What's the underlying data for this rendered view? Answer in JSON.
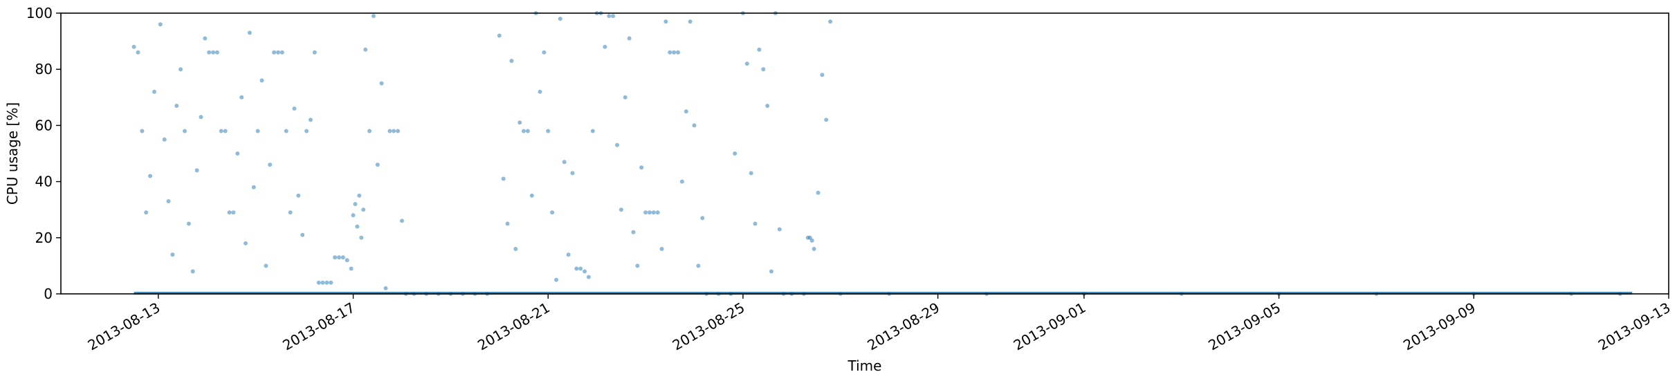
{
  "chart_data": {
    "type": "scatter",
    "title": "",
    "xlabel": "Time",
    "ylabel": "CPU usage [%]",
    "ylim": [
      0,
      100
    ],
    "xlim": [
      "2013-08-11",
      "2013-09-13"
    ],
    "grid": false,
    "legend": "none",
    "point_color": "#1f77b4",
    "x_ticks": [
      {
        "date": "2013-08-13",
        "label": "2013-08-13"
      },
      {
        "date": "2013-08-17",
        "label": "2013-08-17"
      },
      {
        "date": "2013-08-21",
        "label": "2013-08-21"
      },
      {
        "date": "2013-08-25",
        "label": "2013-08-25"
      },
      {
        "date": "2013-08-29",
        "label": "2013-08-29"
      },
      {
        "date": "2013-09-01",
        "label": "2013-09-01"
      },
      {
        "date": "2013-09-05",
        "label": "2013-09-05"
      },
      {
        "date": "2013-09-09",
        "label": "2013-09-09"
      },
      {
        "date": "2013-09-13",
        "label": "2013-09-13"
      }
    ],
    "y_ticks": [
      0,
      20,
      40,
      60,
      80,
      100
    ],
    "series": [
      {
        "points": [
          [
            "2013-08-12 12:00",
            88
          ],
          [
            "2013-08-12 14:00",
            86
          ],
          [
            "2013-08-12 16:00",
            58
          ],
          [
            "2013-08-12 18:00",
            29
          ],
          [
            "2013-08-12 20:00",
            42
          ],
          [
            "2013-08-12 22:00",
            72
          ],
          [
            "2013-08-13 01:00",
            96
          ],
          [
            "2013-08-13 03:00",
            55
          ],
          [
            "2013-08-13 05:00",
            33
          ],
          [
            "2013-08-13 07:00",
            14
          ],
          [
            "2013-08-13 09:00",
            67
          ],
          [
            "2013-08-13 11:00",
            80
          ],
          [
            "2013-08-13 13:00",
            58
          ],
          [
            "2013-08-13 15:00",
            25
          ],
          [
            "2013-08-13 17:00",
            8
          ],
          [
            "2013-08-13 19:00",
            44
          ],
          [
            "2013-08-13 21:00",
            63
          ],
          [
            "2013-08-13 23:00",
            91
          ],
          [
            "2013-08-14 01:00",
            86
          ],
          [
            "2013-08-14 03:00",
            86
          ],
          [
            "2013-08-14 05:00",
            86
          ],
          [
            "2013-08-14 07:00",
            58
          ],
          [
            "2013-08-14 09:00",
            58
          ],
          [
            "2013-08-14 11:00",
            29
          ],
          [
            "2013-08-14 13:00",
            29
          ],
          [
            "2013-08-14 15:00",
            50
          ],
          [
            "2013-08-14 17:00",
            70
          ],
          [
            "2013-08-14 19:00",
            18
          ],
          [
            "2013-08-14 21:00",
            93
          ],
          [
            "2013-08-14 23:00",
            38
          ],
          [
            "2013-08-15 01:00",
            58
          ],
          [
            "2013-08-15 03:00",
            76
          ],
          [
            "2013-08-15 05:00",
            10
          ],
          [
            "2013-08-15 07:00",
            46
          ],
          [
            "2013-08-15 09:00",
            86
          ],
          [
            "2013-08-15 11:00",
            86
          ],
          [
            "2013-08-15 13:00",
            86
          ],
          [
            "2013-08-15 15:00",
            58
          ],
          [
            "2013-08-15 17:00",
            29
          ],
          [
            "2013-08-15 19:00",
            66
          ],
          [
            "2013-08-15 21:00",
            35
          ],
          [
            "2013-08-15 23:00",
            21
          ],
          [
            "2013-08-16 01:00",
            58
          ],
          [
            "2013-08-16 03:00",
            62
          ],
          [
            "2013-08-16 05:00",
            86
          ],
          [
            "2013-08-16 07:00",
            4
          ],
          [
            "2013-08-16 09:00",
            4
          ],
          [
            "2013-08-16 11:00",
            4
          ],
          [
            "2013-08-16 13:00",
            4
          ],
          [
            "2013-08-16 15:00",
            13
          ],
          [
            "2013-08-16 17:00",
            13
          ],
          [
            "2013-08-16 19:00",
            13
          ],
          [
            "2013-08-16 21:00",
            12
          ],
          [
            "2013-08-16 23:00",
            9
          ],
          [
            "2013-08-17 00:00",
            28
          ],
          [
            "2013-08-17 01:00",
            32
          ],
          [
            "2013-08-17 02:00",
            24
          ],
          [
            "2013-08-17 03:00",
            35
          ],
          [
            "2013-08-17 04:00",
            20
          ],
          [
            "2013-08-17 05:00",
            30
          ],
          [
            "2013-08-17 06:00",
            87
          ],
          [
            "2013-08-17 08:00",
            58
          ],
          [
            "2013-08-17 10:00",
            99
          ],
          [
            "2013-08-17 12:00",
            46
          ],
          [
            "2013-08-17 14:00",
            75
          ],
          [
            "2013-08-17 16:00",
            2
          ],
          [
            "2013-08-17 18:00",
            58
          ],
          [
            "2013-08-17 20:00",
            58
          ],
          [
            "2013-08-17 22:00",
            58
          ],
          [
            "2013-08-18 00:00",
            26
          ],
          [
            "2013-08-18 02:00",
            0
          ],
          [
            "2013-08-18 06:00",
            0
          ],
          [
            "2013-08-18 12:00",
            0
          ],
          [
            "2013-08-18 18:00",
            0
          ],
          [
            "2013-08-19 00:00",
            0
          ],
          [
            "2013-08-19 06:00",
            0
          ],
          [
            "2013-08-19 12:00",
            0
          ],
          [
            "2013-08-19 18:00",
            0
          ],
          [
            "2013-08-20 00:00",
            92
          ],
          [
            "2013-08-20 02:00",
            41
          ],
          [
            "2013-08-20 04:00",
            25
          ],
          [
            "2013-08-20 06:00",
            83
          ],
          [
            "2013-08-20 08:00",
            16
          ],
          [
            "2013-08-20 10:00",
            61
          ],
          [
            "2013-08-20 12:00",
            58
          ],
          [
            "2013-08-20 14:00",
            58
          ],
          [
            "2013-08-20 16:00",
            35
          ],
          [
            "2013-08-20 18:00",
            100
          ],
          [
            "2013-08-20 20:00",
            72
          ],
          [
            "2013-08-20 22:00",
            86
          ],
          [
            "2013-08-21 00:00",
            58
          ],
          [
            "2013-08-21 02:00",
            29
          ],
          [
            "2013-08-21 04:00",
            5
          ],
          [
            "2013-08-21 06:00",
            98
          ],
          [
            "2013-08-21 08:00",
            47
          ],
          [
            "2013-08-21 10:00",
            14
          ],
          [
            "2013-08-21 12:00",
            43
          ],
          [
            "2013-08-21 14:00",
            9
          ],
          [
            "2013-08-21 16:00",
            9
          ],
          [
            "2013-08-21 18:00",
            8
          ],
          [
            "2013-08-21 20:00",
            6
          ],
          [
            "2013-08-21 22:00",
            58
          ],
          [
            "2013-08-22 00:00",
            100
          ],
          [
            "2013-08-22 02:00",
            100
          ],
          [
            "2013-08-22 04:00",
            88
          ],
          [
            "2013-08-22 06:00",
            99
          ],
          [
            "2013-08-22 08:00",
            99
          ],
          [
            "2013-08-22 10:00",
            53
          ],
          [
            "2013-08-22 12:00",
            30
          ],
          [
            "2013-08-22 14:00",
            70
          ],
          [
            "2013-08-22 16:00",
            91
          ],
          [
            "2013-08-22 18:00",
            22
          ],
          [
            "2013-08-22 20:00",
            10
          ],
          [
            "2013-08-22 22:00",
            45
          ],
          [
            "2013-08-23 00:00",
            29
          ],
          [
            "2013-08-23 02:00",
            29
          ],
          [
            "2013-08-23 04:00",
            29
          ],
          [
            "2013-08-23 06:00",
            29
          ],
          [
            "2013-08-23 08:00",
            16
          ],
          [
            "2013-08-23 10:00",
            97
          ],
          [
            "2013-08-23 12:00",
            86
          ],
          [
            "2013-08-23 14:00",
            86
          ],
          [
            "2013-08-23 16:00",
            86
          ],
          [
            "2013-08-23 18:00",
            40
          ],
          [
            "2013-08-23 20:00",
            65
          ],
          [
            "2013-08-23 22:00",
            97
          ],
          [
            "2013-08-24 00:00",
            60
          ],
          [
            "2013-08-24 02:00",
            10
          ],
          [
            "2013-08-24 04:00",
            27
          ],
          [
            "2013-08-24 06:00",
            0
          ],
          [
            "2013-08-24 12:00",
            0
          ],
          [
            "2013-08-24 18:00",
            0
          ],
          [
            "2013-08-24 20:00",
            50
          ],
          [
            "2013-08-25 00:00",
            100
          ],
          [
            "2013-08-25 02:00",
            82
          ],
          [
            "2013-08-25 04:00",
            43
          ],
          [
            "2013-08-25 06:00",
            25
          ],
          [
            "2013-08-25 08:00",
            87
          ],
          [
            "2013-08-25 10:00",
            80
          ],
          [
            "2013-08-25 12:00",
            67
          ],
          [
            "2013-08-25 14:00",
            8
          ],
          [
            "2013-08-25 16:00",
            100
          ],
          [
            "2013-08-25 18:00",
            23
          ],
          [
            "2013-08-25 20:00",
            0
          ],
          [
            "2013-08-26 00:00",
            0
          ],
          [
            "2013-08-26 06:00",
            0
          ],
          [
            "2013-08-26 08:00",
            20
          ],
          [
            "2013-08-26 09:00",
            20
          ],
          [
            "2013-08-26 10:00",
            19
          ],
          [
            "2013-08-26 11:00",
            16
          ],
          [
            "2013-08-26 13:00",
            36
          ],
          [
            "2013-08-26 15:00",
            78
          ],
          [
            "2013-08-26 17:00",
            62
          ],
          [
            "2013-08-26 19:00",
            97
          ],
          [
            "2013-08-27 00:00",
            0
          ],
          [
            "2013-08-28 00:00",
            0
          ],
          [
            "2013-08-30 00:00",
            0
          ],
          [
            "2013-09-01 00:00",
            0
          ],
          [
            "2013-09-03 00:00",
            0
          ],
          [
            "2013-09-05 00:00",
            0
          ],
          [
            "2013-09-07 00:00",
            0
          ],
          [
            "2013-09-09 00:00",
            0
          ],
          [
            "2013-09-11 00:00",
            0
          ],
          [
            "2013-09-12 00:00",
            0
          ]
        ]
      }
    ],
    "zero_line": {
      "from": "2013-08-12 12:00",
      "to": "2013-09-12 06:00",
      "value": 0
    }
  }
}
